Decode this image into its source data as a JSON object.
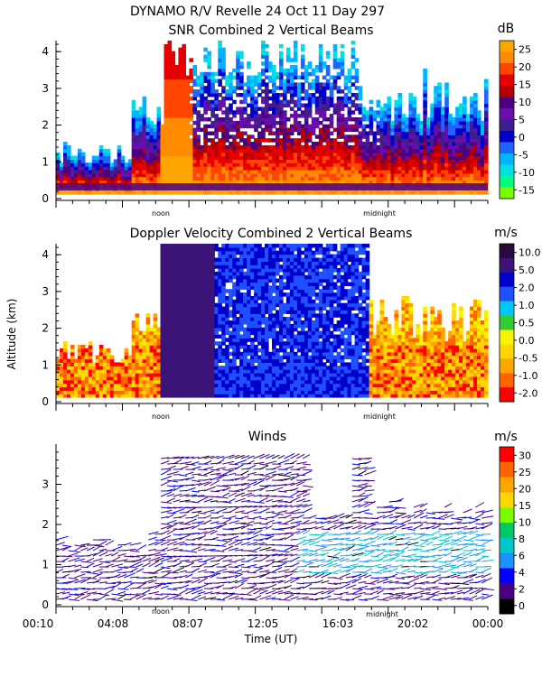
{
  "figure": {
    "title": "DYNAMO R/V Revelle  24 Oct 11 Day 297",
    "xlabel": "Time (UT)",
    "ylabel": "Altitude (km)",
    "time_ticks": [
      "00:10",
      "04:08",
      "08:07",
      "12:05",
      "16:03",
      "20:02",
      "00:00"
    ],
    "markers": [
      "noon",
      "midnight"
    ]
  },
  "chart_data": [
    {
      "type": "heatmap",
      "title": "SNR Combined 2 Vertical Beams",
      "ylim": [
        0,
        4.3
      ],
      "yticks": [
        0,
        1,
        2,
        3,
        4
      ],
      "colorbar": {
        "unit": "dB",
        "labels": [
          "25",
          "20",
          "15",
          "10",
          "5",
          "0",
          "-5",
          "-10",
          "-15"
        ],
        "colors": [
          "#ffa500",
          "#ff8c00",
          "#ff4500",
          "#e60000",
          "#b40000",
          "#4b0082",
          "#6a0dad",
          "#3c1e8c",
          "#0000cd",
          "#1e64ff",
          "#00b4ff",
          "#00e0e0",
          "#00ff7f",
          "#7cfc00"
        ]
      },
      "legend": "right"
    },
    {
      "type": "heatmap",
      "title": "Doppler Velocity Combined 2 Vertical Beams",
      "ylim": [
        0,
        4.3
      ],
      "yticks": [
        0,
        1,
        2,
        3,
        4
      ],
      "colorbar": {
        "unit": "m/s",
        "labels": [
          "10.0",
          "5.0",
          "2.0",
          "1.0",
          "0.5",
          "0.0",
          "-0.5",
          "-1.0",
          "-2.0"
        ],
        "colors": [
          "#2a0a3a",
          "#3c1478",
          "#0000cd",
          "#1e50ff",
          "#00c8ff",
          "#32cd32",
          "#f5f500",
          "#ffd700",
          "#ffa500",
          "#ff6400",
          "#ff0000"
        ]
      },
      "legend": "right"
    },
    {
      "type": "scatter",
      "title": "Winds",
      "ylim": [
        0,
        4
      ],
      "yticks": [
        0,
        1,
        2,
        3
      ],
      "colorbar": {
        "unit": "m/s",
        "labels": [
          "30",
          "25",
          "20",
          "15",
          "10",
          "8",
          "6",
          "4",
          "2",
          "0"
        ],
        "colors": [
          "#ff0000",
          "#ff6400",
          "#ffa500",
          "#ffd700",
          "#7cfc00",
          "#00c864",
          "#00c8c8",
          "#1e90ff",
          "#0000ff",
          "#4b0082",
          "#000000"
        ]
      },
      "legend": "right"
    }
  ]
}
